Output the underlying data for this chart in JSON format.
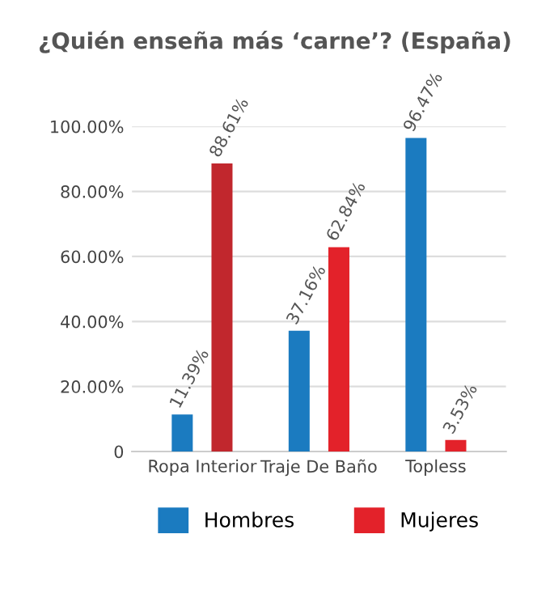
{
  "chart_data": {
    "type": "bar",
    "title": "¿Quién enseña más ‘carne’? (España)",
    "categories": [
      "Ropa Interior",
      "Traje De Baño",
      "Topless"
    ],
    "series": [
      {
        "name": "Hombres",
        "color": "#1b7bc0",
        "values": [
          11.39,
          37.16,
          96.47
        ],
        "value_labels": [
          "11.39%",
          "37.16%",
          "96.47%"
        ]
      },
      {
        "name": "Mujeres",
        "color": "#e3222a",
        "colors": [
          "#c1272d",
          "#e3222a",
          "#e3222a"
        ],
        "values": [
          88.61,
          62.84,
          3.53
        ],
        "value_labels": [
          "88.61%",
          "62.84%",
          "3.53%"
        ]
      }
    ],
    "ylim": [
      0,
      100
    ],
    "yticks": [
      0,
      {
        "value": 20,
        "label": "20.00%"
      },
      {
        "value": 40,
        "label": "40.00%"
      },
      {
        "value": 60,
        "label": "60.00%"
      },
      {
        "value": 80,
        "label": "80.00%"
      },
      {
        "value": 100,
        "label": "100.00%"
      }
    ],
    "grid": "y",
    "legend": "bottom"
  }
}
